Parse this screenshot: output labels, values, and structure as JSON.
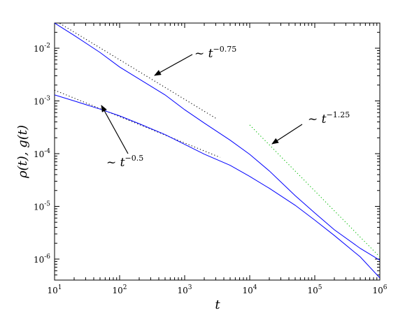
{
  "chart_data": {
    "type": "line",
    "xscale": "log",
    "yscale": "log",
    "xlim": [
      10,
      1000000
    ],
    "ylim": [
      4e-07,
      0.03
    ],
    "xlabel": "t",
    "ylabel": "ρ(t), g(t)",
    "xticks": [
      {
        "value": 10,
        "base": "10",
        "exp": "1"
      },
      {
        "value": 100,
        "base": "10",
        "exp": "2"
      },
      {
        "value": 1000,
        "base": "10",
        "exp": "3"
      },
      {
        "value": 10000,
        "base": "10",
        "exp": "4"
      },
      {
        "value": 100000,
        "base": "10",
        "exp": "5"
      },
      {
        "value": 1000000,
        "base": "10",
        "exp": "6"
      }
    ],
    "yticks": [
      {
        "value": 1e-06,
        "base": "10",
        "exp": "-6"
      },
      {
        "value": 1e-05,
        "base": "10",
        "exp": "-5"
      },
      {
        "value": 0.0001,
        "base": "10",
        "exp": "-4"
      },
      {
        "value": 0.001,
        "base": "10",
        "exp": "-3"
      },
      {
        "value": 0.01,
        "base": "10",
        "exp": "-2"
      }
    ],
    "series": [
      {
        "color": "#0000ff",
        "style": "solid",
        "x": [
          10,
          20,
          50,
          100,
          200,
          500,
          1000,
          2000,
          5000,
          10000,
          20000,
          50000,
          100000,
          200000,
          500000,
          1000000
        ],
        "y": [
          0.03,
          0.0175,
          0.0083,
          0.0044,
          0.0026,
          0.0013,
          0.00068,
          0.00038,
          0.00018,
          9.7e-05,
          4.7e-05,
          1.6e-05,
          7.5e-06,
          3.6e-06,
          1.6e-06,
          9.5e-07
        ]
      },
      {
        "color": "#0000ff",
        "style": "solid",
        "x": [
          10,
          20,
          50,
          100,
          200,
          500,
          1000,
          2000,
          5000,
          10000,
          20000,
          50000,
          100000,
          200000,
          500000,
          1000000
        ],
        "y": [
          0.0013,
          0.001,
          0.0007,
          0.00052,
          0.00037,
          0.00023,
          0.00015,
          9.8e-05,
          6e-05,
          3.7e-05,
          2.2e-05,
          1.05e-05,
          5.5e-06,
          2.8e-06,
          1.1e-06,
          4.4e-07
        ]
      }
    ],
    "guides": [
      {
        "color": "#000000",
        "style": "dotted",
        "x": [
          10,
          3000
        ],
        "y": [
          0.034,
          0.00047
        ]
      },
      {
        "color": "#000000",
        "style": "dotted",
        "x": [
          10,
          3500
        ],
        "y": [
          0.0016,
          8.5e-05
        ]
      },
      {
        "color": "#00bb00",
        "style": "dotted",
        "x": [
          10000,
          1000000
        ],
        "y": [
          0.00035,
          1.1e-06
        ]
      }
    ],
    "annotations": [
      {
        "prefix": "~ t",
        "exp": "−0.75",
        "anchor": "label_a"
      },
      {
        "prefix": "~ t",
        "exp": "−0.5",
        "anchor": "label_b"
      },
      {
        "prefix": "~ t",
        "exp": "−1.25",
        "anchor": "label_c"
      }
    ]
  }
}
